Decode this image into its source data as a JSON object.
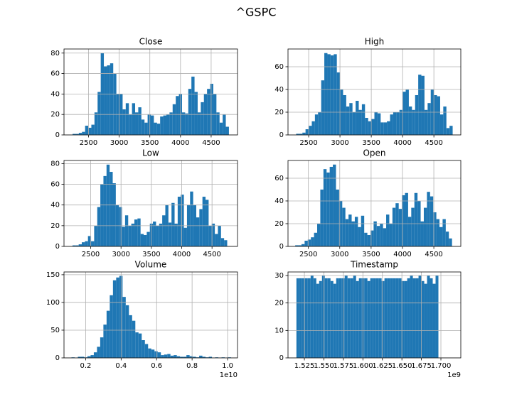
{
  "title": "^GSPC",
  "chart_data": [
    {
      "type": "histogram",
      "title": "Close",
      "color": "#1f77b4",
      "grid": true,
      "bins": [
        2240,
        2291,
        2342,
        2393,
        2444,
        2495,
        2546,
        2597,
        2648,
        2699,
        2750,
        2801,
        2852,
        2903,
        2954,
        3005,
        3056,
        3107,
        3158,
        3209,
        3260,
        3311,
        3362,
        3413,
        3464,
        3515,
        3566,
        3617,
        3668,
        3719,
        3770,
        3821,
        3872,
        3923,
        3974,
        4025,
        4076,
        4127,
        4178,
        4229,
        4280,
        4331,
        4382,
        4433,
        4484,
        4535,
        4586,
        4637,
        4688,
        4739,
        4790
      ],
      "values": [
        1,
        1,
        2,
        3,
        9,
        7,
        10,
        22,
        42,
        80,
        67,
        68,
        70,
        60,
        40,
        40,
        25,
        31,
        20,
        31,
        22,
        27,
        15,
        12,
        20,
        19,
        12,
        11,
        18,
        19,
        20,
        22,
        30,
        38,
        40,
        22,
        21,
        45,
        57,
        42,
        22,
        32,
        40,
        45,
        50,
        40,
        22,
        12,
        20,
        8
      ],
      "xlim": [
        2100,
        4930
      ],
      "xticks": [
        2500,
        3000,
        3500,
        4000,
        4500
      ],
      "ylim": [
        0,
        84
      ],
      "yticks": [
        0,
        20,
        40,
        60,
        80
      ]
    },
    {
      "type": "histogram",
      "title": "High",
      "color": "#1f77b4",
      "grid": true,
      "bins": [
        2300,
        2350,
        2400,
        2450,
        2500,
        2550,
        2600,
        2650,
        2700,
        2750,
        2800,
        2850,
        2900,
        2950,
        3000,
        3050,
        3100,
        3150,
        3200,
        3250,
        3300,
        3350,
        3400,
        3450,
        3500,
        3550,
        3600,
        3650,
        3700,
        3750,
        3800,
        3850,
        3900,
        3950,
        4000,
        4050,
        4100,
        4150,
        4200,
        4250,
        4300,
        4350,
        4400,
        4450,
        4500,
        4550,
        4600,
        4650,
        4700,
        4750,
        4800
      ],
      "values": [
        1,
        1,
        2,
        5,
        8,
        12,
        18,
        20,
        48,
        72,
        71,
        70,
        71,
        55,
        40,
        35,
        25,
        28,
        20,
        30,
        22,
        27,
        15,
        12,
        14,
        20,
        19,
        11,
        11,
        12,
        18,
        20,
        20,
        22,
        38,
        40,
        25,
        22,
        35,
        53,
        52,
        22,
        28,
        40,
        35,
        34,
        18,
        25,
        6,
        8
      ],
      "xlim": [
        2170,
        4930
      ],
      "xticks": [
        2500,
        3000,
        3500,
        4000,
        4500
      ],
      "ylim": [
        0,
        75.6
      ],
      "yticks": [
        0,
        20,
        40,
        60
      ]
    },
    {
      "type": "histogram",
      "title": "Low",
      "color": "#1f77b4",
      "grid": true,
      "bins": [
        2200,
        2251,
        2302,
        2353,
        2404,
        2455,
        2506,
        2557,
        2608,
        2659,
        2710,
        2761,
        2812,
        2863,
        2914,
        2965,
        3016,
        3067,
        3118,
        3169,
        3220,
        3271,
        3322,
        3373,
        3424,
        3475,
        3526,
        3577,
        3628,
        3679,
        3730,
        3781,
        3832,
        3883,
        3934,
        3985,
        4036,
        4087,
        4138,
        4189,
        4240,
        4291,
        4342,
        4393,
        4444,
        4495,
        4546,
        4597,
        4648,
        4699,
        4750
      ],
      "values": [
        1,
        1,
        2,
        4,
        5,
        10,
        5,
        20,
        38,
        60,
        68,
        79,
        72,
        61,
        40,
        38,
        19,
        30,
        20,
        22,
        26,
        27,
        12,
        11,
        14,
        22,
        24,
        20,
        22,
        30,
        40,
        23,
        42,
        22,
        48,
        50,
        18,
        40,
        53,
        40,
        28,
        36,
        48,
        45,
        20,
        22,
        12,
        20,
        8,
        6
      ],
      "xlim": [
        2060,
        4920
      ],
      "xticks": [
        2500,
        3000,
        3500,
        4000,
        4500
      ],
      "ylim": [
        0,
        83
      ],
      "yticks": [
        0,
        20,
        40,
        60,
        80
      ]
    },
    {
      "type": "histogram",
      "title": "Open",
      "color": "#1f77b4",
      "grid": true,
      "bins": [
        2290,
        2340,
        2390,
        2440,
        2490,
        2540,
        2590,
        2640,
        2690,
        2740,
        2790,
        2840,
        2890,
        2940,
        2990,
        3040,
        3090,
        3140,
        3190,
        3240,
        3290,
        3340,
        3390,
        3440,
        3490,
        3540,
        3590,
        3640,
        3690,
        3740,
        3790,
        3840,
        3890,
        3940,
        3990,
        4040,
        4090,
        4140,
        4190,
        4240,
        4290,
        4340,
        4390,
        4440,
        4490,
        4540,
        4590,
        4640,
        4690,
        4740,
        4790
      ],
      "values": [
        1,
        1,
        2,
        5,
        6,
        8,
        12,
        20,
        50,
        68,
        65,
        70,
        72,
        50,
        40,
        34,
        24,
        28,
        22,
        26,
        17,
        27,
        12,
        10,
        14,
        22,
        18,
        20,
        16,
        28,
        20,
        34,
        38,
        33,
        45,
        47,
        26,
        34,
        47,
        40,
        22,
        34,
        48,
        44,
        30,
        24,
        17,
        24,
        13,
        7
      ],
      "xlim": [
        2175,
        4930
      ],
      "xticks": [
        2500,
        3000,
        3500,
        4000,
        4500
      ],
      "ylim": [
        0,
        75.6
      ],
      "yticks": [
        0,
        20,
        40,
        60
      ]
    },
    {
      "type": "histogram",
      "title": "Volume",
      "color": "#1f77b4",
      "grid": true,
      "x_offset_label": "1e10",
      "bins": [
        0.12,
        0.138,
        0.156,
        0.174,
        0.192,
        0.21,
        0.228,
        0.246,
        0.264,
        0.282,
        0.3,
        0.318,
        0.336,
        0.354,
        0.372,
        0.39,
        0.408,
        0.426,
        0.444,
        0.462,
        0.48,
        0.498,
        0.516,
        0.534,
        0.552,
        0.57,
        0.588,
        0.606,
        0.624,
        0.642,
        0.66,
        0.678,
        0.696,
        0.714,
        0.732,
        0.75,
        0.768,
        0.786,
        0.804,
        0.822,
        0.84,
        0.858,
        0.876,
        0.894,
        0.912,
        0.93,
        0.948,
        0.966,
        0.984,
        1.002,
        1.02
      ],
      "values": [
        1,
        0,
        2,
        2,
        1,
        3,
        5,
        10,
        20,
        37,
        60,
        85,
        113,
        140,
        145,
        148,
        110,
        95,
        77,
        67,
        46,
        44,
        32,
        25,
        17,
        15,
        12,
        10,
        5,
        6,
        7,
        4,
        5,
        3,
        2,
        2,
        5,
        3,
        2,
        1,
        4,
        2,
        1,
        2,
        0,
        1,
        0,
        1,
        0,
        1
      ],
      "xlim": [
        0.078,
        1.056
      ],
      "xticks": [
        0.2,
        0.4,
        0.6,
        0.8,
        {
          "value": 1,
          "label": "1.0"
        }
      ],
      "ylim": [
        0,
        155
      ],
      "yticks": [
        0,
        50,
        100,
        150
      ]
    },
    {
      "type": "histogram",
      "title": "Timestamp",
      "color": "#1f77b4",
      "grid": true,
      "x_offset_label": "1e9",
      "bins": [
        1.5148,
        1.51844,
        1.52208,
        1.52572,
        1.52936,
        1.533,
        1.53664,
        1.54028,
        1.54392,
        1.54756,
        1.5512,
        1.55484,
        1.55848,
        1.56212,
        1.56576,
        1.5694,
        1.57304,
        1.57668,
        1.58032,
        1.58396,
        1.5876,
        1.59124,
        1.59488,
        1.59852,
        1.60216,
        1.6058,
        1.60944,
        1.61308,
        1.61672,
        1.62036,
        1.624,
        1.62764,
        1.63128,
        1.63492,
        1.63856,
        1.6422,
        1.64584,
        1.64948,
        1.65312,
        1.65676,
        1.6604,
        1.66404,
        1.66768,
        1.67132,
        1.67496,
        1.6786,
        1.68224,
        1.68588,
        1.68952,
        1.69316,
        1.6968
      ],
      "values": [
        29,
        29,
        29,
        29,
        29,
        30,
        29,
        27,
        28,
        30,
        29,
        29,
        28,
        27,
        29,
        29,
        29,
        30,
        29,
        29,
        30,
        28,
        29,
        29,
        29,
        28,
        29,
        29,
        29,
        29,
        28,
        29,
        29,
        29,
        29,
        29,
        29,
        28,
        28,
        29,
        30,
        29,
        29,
        30,
        28,
        27,
        30,
        29,
        27,
        30
      ],
      "xlim": [
        1.504,
        1.7255
      ],
      "xticks": [
        1.525,
        {
          "value": 1.55,
          "label": "1.550"
        },
        1.575,
        {
          "value": 1.6,
          "label": "1.600"
        },
        1.625,
        {
          "value": 1.65,
          "label": "1.650"
        },
        1.675,
        {
          "value": 1.7,
          "label": "1.700"
        }
      ],
      "ylim": [
        0,
        31.3
      ],
      "yticks": [
        0,
        10,
        20,
        30
      ]
    }
  ]
}
